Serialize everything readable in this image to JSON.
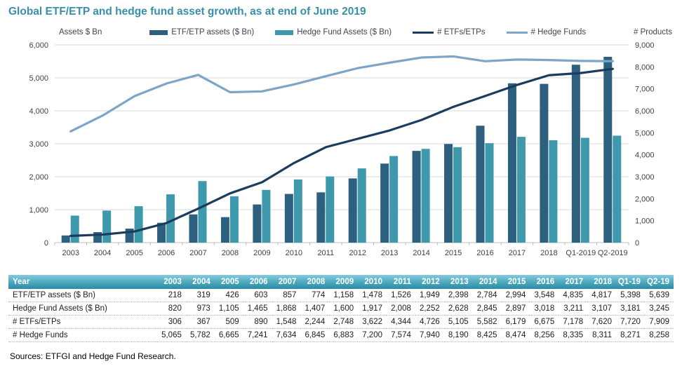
{
  "title": "Global ETF/ETP and hedge fund asset growth, as at end of June 2019",
  "colors": {
    "title": "#3a8fa8",
    "etf_bar": "#2d5f7e",
    "hf_bar": "#3e99ad",
    "etf_line": "#1c3c5e",
    "hf_line": "#7da5c8",
    "grid": "#d9d9d9",
    "axis": "#bfbfbf",
    "table_header_top": "#86cadb",
    "table_header_bottom": "#2c8aa4"
  },
  "chart_data": {
    "type": "bar",
    "subtype": "combo-bar-line-dual-axis",
    "categories": [
      "2003",
      "2004",
      "2005",
      "2006",
      "2007",
      "2008",
      "2009",
      "2010",
      "2011",
      "2012",
      "2013",
      "2014",
      "2015",
      "2016",
      "2017",
      "2018",
      "Q1-2019",
      "Q2-2019"
    ],
    "series": [
      {
        "name": "ETF/ETP assets ($ Bn)",
        "type": "bar",
        "axis": "left",
        "color": "#2d5f7e",
        "values": [
          218,
          319,
          426,
          603,
          857,
          774,
          1158,
          1478,
          1526,
          1949,
          2398,
          2784,
          2994,
          3548,
          4835,
          4817,
          5398,
          5639
        ]
      },
      {
        "name": "Hedge Fund Assets ($ Bn)",
        "type": "bar",
        "axis": "left",
        "color": "#3e99ad",
        "values": [
          820,
          973,
          1105,
          1465,
          1868,
          1407,
          1600,
          1917,
          2008,
          2252,
          2628,
          2845,
          2897,
          3018,
          3211,
          3107,
          3181,
          3245
        ]
      },
      {
        "name": "# ETFs/ETPs",
        "type": "line",
        "axis": "right",
        "color": "#1c3c5e",
        "values": [
          306,
          367,
          509,
          890,
          1548,
          2244,
          2748,
          3622,
          4344,
          4726,
          5105,
          5582,
          6179,
          6675,
          7178,
          7620,
          7720,
          7909
        ]
      },
      {
        "name": "# Hedge Funds",
        "type": "line",
        "axis": "right",
        "color": "#7da5c8",
        "values": [
          5065,
          5782,
          6665,
          7241,
          7634,
          6845,
          6883,
          7200,
          7574,
          7940,
          8190,
          8425,
          8474,
          8256,
          8335,
          8311,
          8271,
          8258
        ]
      }
    ],
    "left_axis": {
      "label": "Assets $ Bn",
      "min": 0,
      "max": 6000,
      "step": 1000
    },
    "right_axis": {
      "label": "# Products",
      "min": 0,
      "max": 9000,
      "step": 1000
    },
    "grid": true,
    "legend_position": "top-center"
  },
  "table": {
    "header": [
      "Year",
      "2003",
      "2004",
      "2005",
      "2006",
      "2007",
      "2008",
      "2009",
      "2010",
      "2011",
      "2012",
      "2013",
      "2014",
      "2015",
      "2016",
      "2017",
      "2018",
      "Q1-19",
      "Q2-19"
    ],
    "rows": [
      {
        "label": "ETF/ETP assets ($ Bn)",
        "values": [
          "218",
          "319",
          "426",
          "603",
          "857",
          "774",
          "1,158",
          "1,478",
          "1,526",
          "1,949",
          "2,398",
          "2,784",
          "2,994",
          "3,548",
          "4,835",
          "4,817",
          "5,398",
          "5,639"
        ]
      },
      {
        "label": "Hedge Fund Assets ($ Bn)",
        "values": [
          "820",
          "973",
          "1,105",
          "1,465",
          "1,868",
          "1,407",
          "1,600",
          "1,917",
          "2,008",
          "2,252",
          "2,628",
          "2,845",
          "2,897",
          "3,018",
          "3,211",
          "3,107",
          "3,181",
          "3,245"
        ]
      },
      {
        "label": "# ETFs/ETPs",
        "values": [
          "306",
          "367",
          "509",
          "890",
          "1,548",
          "2,244",
          "2,748",
          "3,622",
          "4,344",
          "4,726",
          "5,105",
          "5,582",
          "6,179",
          "6,675",
          "7,178",
          "7,620",
          "7,720",
          "7,909"
        ]
      },
      {
        "label": "# Hedge Funds",
        "values": [
          "5,065",
          "5,782",
          "6,665",
          "7,241",
          "7,634",
          "6,845",
          "6,883",
          "7,200",
          "7,574",
          "7,940",
          "8,190",
          "8,425",
          "8,474",
          "8,256",
          "8,335",
          "8,311",
          "8,271",
          "8,258"
        ]
      }
    ]
  },
  "source": "Sources: ETFGI and Hedge Fund Research."
}
